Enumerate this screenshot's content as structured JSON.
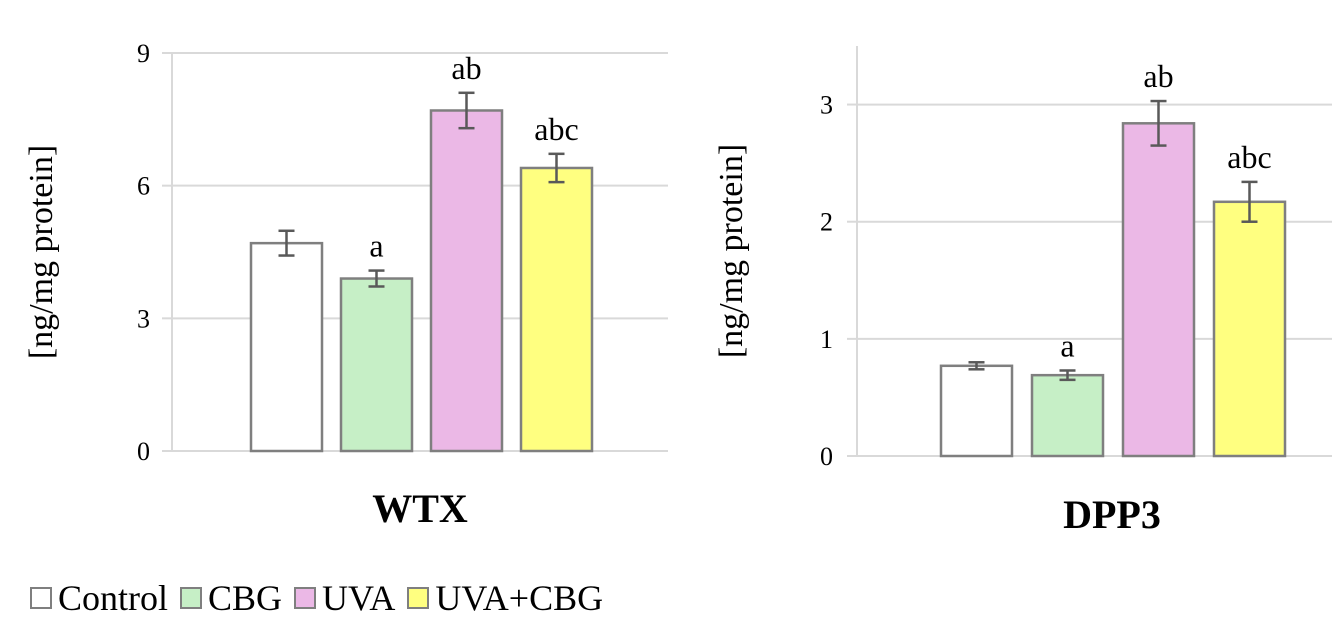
{
  "chart_data": [
    {
      "type": "bar",
      "title": "WTX",
      "ylabel": "[ng/mg protein]",
      "ylim": [
        0,
        9
      ],
      "yticks": [
        "0",
        "3",
        "6",
        "9"
      ],
      "grid": true,
      "categories": [
        "Control",
        "CBG",
        "UVA",
        "UVA+CBG"
      ],
      "values": [
        4.7,
        3.9,
        7.7,
        6.4
      ],
      "errors": [
        0.28,
        0.18,
        0.4,
        0.32
      ],
      "annotations": [
        "",
        "a",
        "ab",
        "abc"
      ]
    },
    {
      "type": "bar",
      "title": "DPP3",
      "ylabel": "[ng/mg protein]",
      "ylim": [
        0,
        3.5
      ],
      "yticks": [
        "0",
        "1",
        "2",
        "3"
      ],
      "grid": true,
      "categories": [
        "Control",
        "CBG",
        "UVA",
        "UVA+CBG"
      ],
      "values": [
        0.77,
        0.69,
        2.84,
        2.17
      ],
      "errors": [
        0.03,
        0.04,
        0.19,
        0.17
      ],
      "annotations": [
        "",
        "a",
        "ab",
        "abc"
      ]
    }
  ],
  "legend": {
    "position": "bottom-left",
    "items": [
      {
        "label": "Control",
        "color": "#ffffff"
      },
      {
        "label": "CBG",
        "color": "#c6efc6"
      },
      {
        "label": "UVA",
        "color": "#ebb8e6"
      },
      {
        "label": "UVA+CBG",
        "color": "#ffff80"
      }
    ]
  },
  "style": {
    "bar_border": "#7f7f7f",
    "grid_color": "#d9d9d9",
    "error_color": "#595959"
  }
}
